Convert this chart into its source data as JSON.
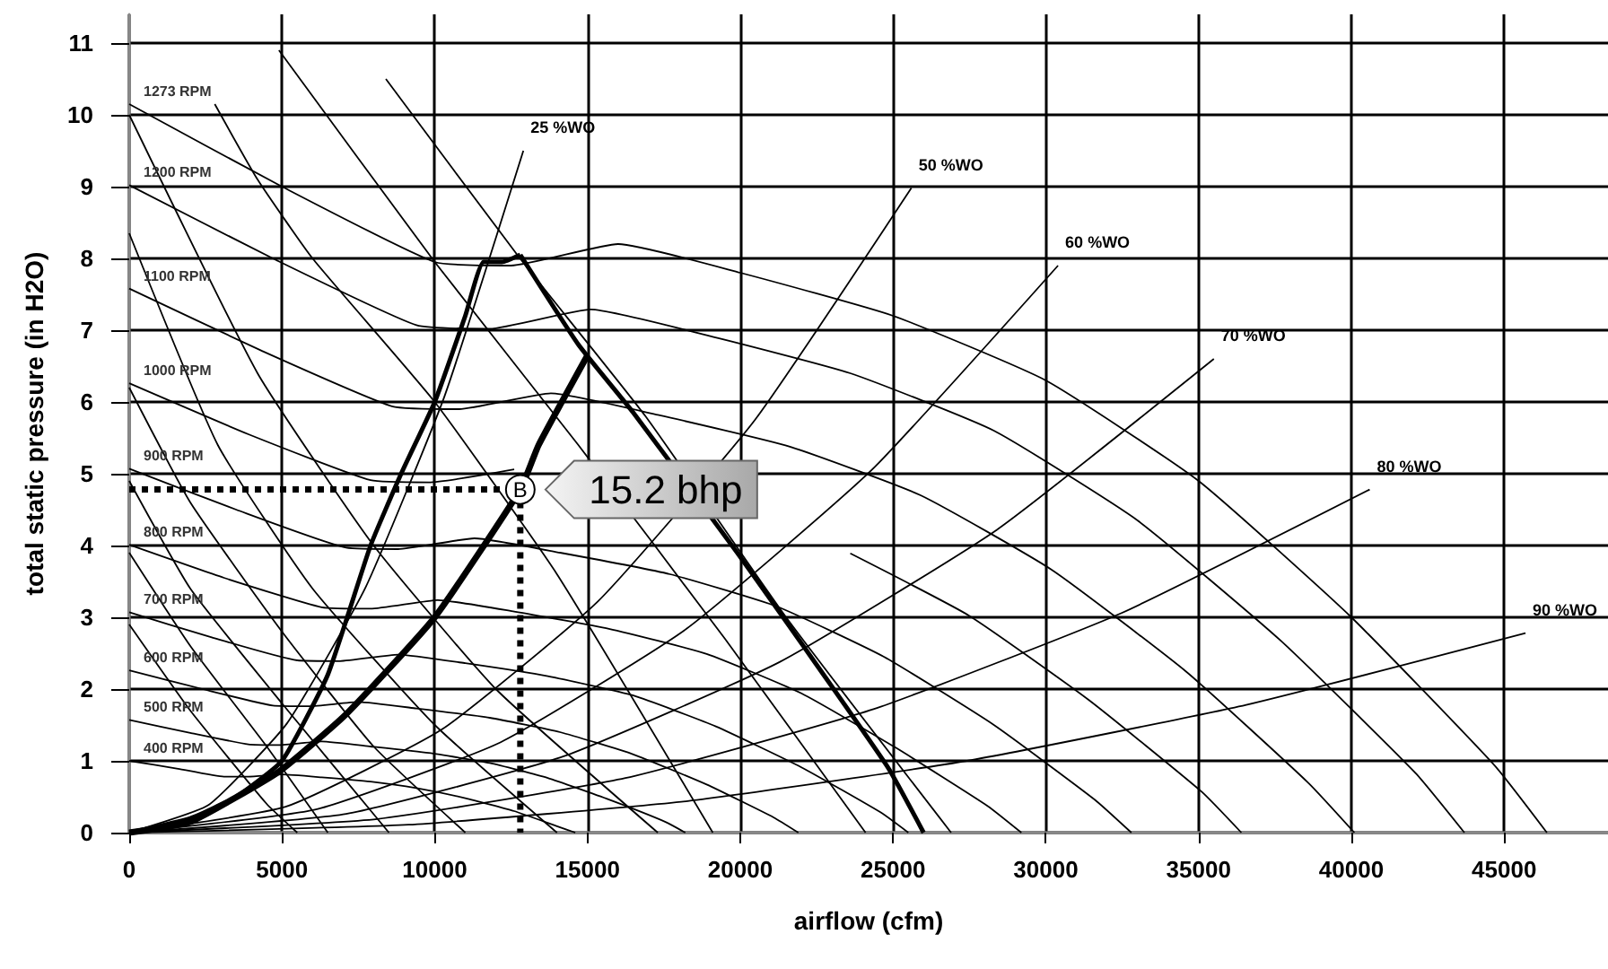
{
  "chart_data": {
    "type": "line",
    "xlabel": "airflow (cfm)",
    "ylabel": "total static pressure (in H2O)",
    "xlim": [
      0,
      48400
    ],
    "xticks": [
      0,
      5000,
      10000,
      15000,
      20000,
      25000,
      30000,
      35000,
      40000,
      45000
    ],
    "ylim": [
      0,
      11.4
    ],
    "yticks": [
      0,
      1,
      2,
      3,
      4,
      5,
      6,
      7,
      8,
      9,
      10,
      11
    ],
    "grid": true,
    "marker": "none",
    "line_style": "solid",
    "annotations": [
      {
        "text": "B",
        "x": 12800,
        "y": 4.78
      },
      {
        "text": "15.2 bhp",
        "x": 12800,
        "y": 4.78
      }
    ],
    "series": [
      {
        "color": "#000000",
        "x": [
          0,
          2000,
          3500,
          5000,
          6500,
          7900,
          8900,
          10000,
          11000,
          11600,
          12200,
          12800
        ],
        "values": [
          0,
          0.2,
          0.5,
          1.0,
          2.2,
          4.0,
          5.0,
          6.0,
          7.2,
          7.95,
          7.95,
          8.05
        ]
      },
      {
        "color": "#000000",
        "x": [
          12800,
          14700,
          16500,
          19900,
          24800,
          26000
        ],
        "values": [
          8.05,
          6.8,
          5.85,
          3.9,
          0.93,
          0
        ]
      },
      {
        "color": "#000000",
        "x": [
          0,
          2000,
          4900,
          7100,
          10000,
          12800,
          13400,
          15000
        ],
        "values": [
          0,
          0.15,
          0.85,
          1.65,
          3.0,
          4.78,
          5.4,
          6.65
        ]
      },
      {
        "color": "#000000",
        "line_style": "dotted",
        "x": [
          0,
          12800
        ],
        "values": [
          4.78,
          4.78
        ]
      },
      {
        "color": "#000000",
        "line_style": "dotted",
        "x": [
          12800,
          12800
        ],
        "values": [
          4.78,
          0
        ]
      },
      {
        "name": "1273 RPM",
        "color": "#000000",
        "x": [
          0,
          5000,
          10000,
          12500,
          16000,
          20000,
          25000,
          30000,
          35000,
          40000,
          44700,
          46400
        ],
        "values": [
          10.15,
          9.0,
          7.95,
          7.9,
          8.2,
          7.8,
          7.2,
          6.3,
          4.9,
          3.0,
          0.93,
          0
        ]
      },
      {
        "name": "1200 RPM",
        "color": "#000000",
        "x": [
          0,
          4700,
          9400,
          11800,
          15100,
          18900,
          23600,
          28300,
          33000,
          37700,
          42100,
          43700
        ],
        "values": [
          9.02,
          8.0,
          7.07,
          7.02,
          7.29,
          6.93,
          6.4,
          5.6,
          4.35,
          2.67,
          0.83,
          0
        ]
      },
      {
        "name": "1100 RPM",
        "color": "#000000",
        "x": [
          0,
          4300,
          8600,
          10800,
          13800,
          17300,
          21600,
          25900,
          30200,
          34600,
          38600,
          40100
        ],
        "values": [
          7.58,
          6.72,
          5.94,
          5.9,
          6.12,
          5.82,
          5.38,
          4.7,
          3.66,
          2.24,
          0.69,
          0
        ]
      },
      {
        "name": "1000 RPM",
        "color": "#000000",
        "x": [
          0,
          3900,
          7900,
          9800,
          12600,
          15700,
          19600,
          23600,
          27500,
          31400,
          35100,
          36400
        ],
        "values": [
          6.26,
          5.55,
          4.91,
          4.88,
          5.06,
          null,
          null,
          3.89,
          3.02,
          1.85,
          0.57,
          0
        ]
      },
      {
        "name": "900 RPM",
        "color": "#000000",
        "x": [
          0,
          3500,
          7100,
          8800,
          11300,
          14100,
          17700,
          21200,
          24700,
          28300,
          31600,
          32800
        ],
        "values": [
          5.07,
          4.5,
          3.97,
          3.95,
          4.1,
          3.9,
          3.6,
          3.15,
          2.45,
          1.5,
          0.46,
          0
        ]
      },
      {
        "name": "800 RPM",
        "color": "#000000",
        "x": [
          0,
          3100,
          6300,
          7900,
          10100,
          12600,
          15700,
          18900,
          22000,
          25100,
          28100,
          29200
        ],
        "values": [
          4.01,
          3.55,
          3.14,
          3.12,
          3.24,
          3.08,
          2.84,
          2.49,
          1.94,
          1.18,
          0.37,
          0
        ]
      },
      {
        "name": "700 RPM",
        "color": "#000000",
        "x": [
          0,
          2700,
          5500,
          6900,
          8800,
          11000,
          13700,
          16500,
          19200,
          22000,
          24600,
          25500
        ],
        "values": [
          3.07,
          2.72,
          2.4,
          2.39,
          2.48,
          2.36,
          2.18,
          1.91,
          1.48,
          0.91,
          0.28,
          0
        ]
      },
      {
        "name": "600 RPM",
        "color": "#000000",
        "x": [
          0,
          2400,
          4700,
          5900,
          7500,
          9400,
          11800,
          14100,
          16500,
          18900,
          21100,
          21900
        ],
        "values": [
          2.26,
          2.0,
          1.77,
          1.76,
          1.82,
          1.73,
          1.6,
          1.4,
          1.09,
          0.67,
          0.21,
          0
        ]
      },
      {
        "name": "500 RPM",
        "color": "#000000",
        "x": [
          0,
          2000,
          3900,
          4900,
          6300,
          7900,
          9800,
          11800,
          13700,
          15700,
          17600,
          18200
        ],
        "values": [
          1.57,
          1.39,
          1.23,
          1.22,
          1.27,
          1.2,
          1.11,
          0.97,
          0.76,
          0.46,
          0.14,
          0
        ]
      },
      {
        "name": "400 RPM",
        "color": "#000000",
        "x": [
          0,
          1600,
          3100,
          3900,
          5000,
          6300,
          7900,
          9400,
          11000,
          12600,
          14000,
          14600
        ],
        "values": [
          1.0,
          0.89,
          0.78,
          0.78,
          0.81,
          0.77,
          0.71,
          0.62,
          0.48,
          0.3,
          0.09,
          0
        ]
      },
      {
        "name": "25 %WO",
        "color": "#000000",
        "x": [
          0,
          2580,
          5160,
          7740,
          10320,
          12900
        ],
        "values": [
          0,
          0.38,
          1.52,
          3.42,
          6.08,
          9.5
        ]
      },
      {
        "name": "50 %WO",
        "color": "#000000",
        "x": [
          0,
          5120,
          10240,
          15360,
          20480,
          25600
        ],
        "values": [
          0,
          0.36,
          1.44,
          3.23,
          5.75,
          8.98
        ]
      },
      {
        "name": "60 %WO",
        "color": "#000000",
        "x": [
          0,
          6080,
          12160,
          18240,
          24320,
          30400
        ],
        "values": [
          0,
          0.32,
          1.26,
          2.84,
          5.06,
          7.9
        ]
      },
      {
        "name": "70 %WO",
        "color": "#000000",
        "x": [
          0,
          7100,
          14200,
          21300,
          28400,
          35500
        ],
        "values": [
          0,
          0.26,
          1.06,
          2.38,
          4.22,
          6.6
        ]
      },
      {
        "name": "80 %WO",
        "color": "#000000",
        "x": [
          0,
          8120,
          16240,
          24360,
          32480,
          40600
        ],
        "values": [
          0,
          0.19,
          0.76,
          1.72,
          3.06,
          4.78
        ]
      },
      {
        "name": "90 %WO",
        "color": "#000000",
        "x": [
          0,
          9140,
          18280,
          27420,
          36560,
          45700
        ],
        "values": [
          0,
          0.11,
          0.44,
          1.0,
          1.78,
          2.78
        ]
      },
      {
        "color": "#000000",
        "x": [
          4900,
          10000,
          14700,
          19500,
          24100
        ],
        "values": [
          10.9,
          7.95,
          5.4,
          2.7,
          0
        ]
      },
      {
        "color": "#000000",
        "x": [
          8400,
          12700,
          16900,
          21500,
          26900
        ],
        "values": [
          10.5,
          8.05,
          5.8,
          3.0,
          0
        ]
      },
      {
        "color": "#000000",
        "x": [
          2800,
          4200,
          6000,
          10000,
          14000,
          19100
        ],
        "values": [
          10.15,
          9.1,
          8.0,
          6.0,
          3.6,
          0
        ]
      },
      {
        "color": "#000000",
        "x": [
          0,
          4200,
          8000,
          12000,
          17300
        ],
        "values": [
          10.0,
          6.4,
          4.0,
          2.0,
          0
        ]
      },
      {
        "color": "#000000",
        "x": [
          0,
          2900,
          6000,
          10000,
          14000
        ],
        "values": [
          8.35,
          5.4,
          3.4,
          1.5,
          0
        ]
      },
      {
        "color": "#000000",
        "x": [
          0,
          2000,
          5000,
          8000,
          11000
        ],
        "values": [
          6.2,
          4.6,
          2.8,
          1.2,
          0
        ]
      },
      {
        "color": "#000000",
        "x": [
          0,
          2000,
          5000,
          8500
        ],
        "values": [
          4.9,
          3.4,
          1.8,
          0
        ]
      },
      {
        "color": "#000000",
        "x": [
          0,
          2000,
          4500,
          6500
        ],
        "values": [
          3.9,
          2.6,
          1.2,
          0
        ]
      },
      {
        "color": "#000000",
        "x": [
          0,
          2000,
          4500,
          5500
        ],
        "values": [
          2.9,
          1.7,
          0.4,
          0
        ]
      }
    ]
  }
}
